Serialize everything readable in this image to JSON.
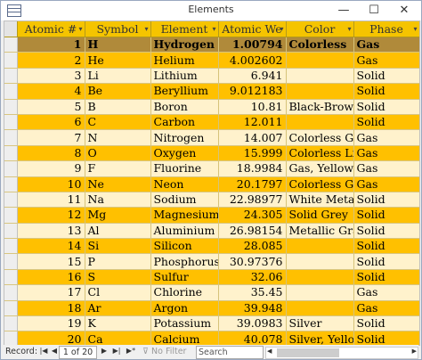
{
  "window": {
    "title": "Elements",
    "minimize": "—",
    "maximize": "☐",
    "close": "✕"
  },
  "columns": [
    "Atomic #",
    "Symbol",
    "Element",
    "Atomic We",
    "Color",
    "Phase"
  ],
  "rows": [
    [
      "1",
      "H",
      "Hydrogen",
      "1.00794",
      "Colorless",
      "Gas"
    ],
    [
      "2",
      "He",
      "Helium",
      "4.002602",
      "",
      "Gas"
    ],
    [
      "3",
      "Li",
      "Lithium",
      "6.941",
      "",
      "Solid"
    ],
    [
      "4",
      "Be",
      "Beryllium",
      "9.012183",
      "",
      "Solid"
    ],
    [
      "5",
      "B",
      "Boron",
      "10.81",
      "Black-Brown",
      "Solid"
    ],
    [
      "6",
      "C",
      "Carbon",
      "12.011",
      "",
      "Solid"
    ],
    [
      "7",
      "N",
      "Nitrogen",
      "14.007",
      "Colorless Ga",
      "Gas"
    ],
    [
      "8",
      "O",
      "Oxygen",
      "15.999",
      "Colorless Liq",
      "Gas"
    ],
    [
      "9",
      "F",
      "Fluorine",
      "18.9984",
      "Gas, Yellow",
      "Gas"
    ],
    [
      "10",
      "Ne",
      "Neon",
      "20.1797",
      "Colorless Ga",
      "Gas"
    ],
    [
      "11",
      "Na",
      "Sodium",
      "22.98977",
      "White Metall",
      "Solid"
    ],
    [
      "12",
      "Mg",
      "Magnesium",
      "24.305",
      "Solid Grey",
      "Solid"
    ],
    [
      "13",
      "Al",
      "Aluminium",
      "26.98154",
      "Metallic Gra",
      "Solid"
    ],
    [
      "14",
      "Si",
      "Silicon",
      "28.085",
      "",
      "Solid"
    ],
    [
      "15",
      "P",
      "Phosphorus",
      "30.97376",
      "",
      "Solid"
    ],
    [
      "16",
      "S",
      "Sulfur",
      "32.06",
      "",
      "Solid"
    ],
    [
      "17",
      "Cl",
      "Chlorine",
      "35.45",
      "",
      "Gas"
    ],
    [
      "18",
      "Ar",
      "Argon",
      "39.948",
      "",
      "Gas"
    ],
    [
      "19",
      "K",
      "Potassium",
      "39.0983",
      "Silver",
      "Solid"
    ],
    [
      "20",
      "Ca",
      "Calcium",
      "40.078",
      "Silver, Yellov",
      "Solid"
    ]
  ],
  "new_row_marker": "*",
  "status": {
    "record_label": "Record:",
    "first": "|◀",
    "prev": "◀",
    "position": "1 of 20",
    "next": "▶",
    "last": "▶|",
    "new": "▶*",
    "filter": "No Filter",
    "search_placeholder": "Search"
  },
  "colors": {
    "header": "#f5c400",
    "odd_row": "#ffc000",
    "even_row": "#fff2cc",
    "selected_row": "#b08a3a"
  }
}
